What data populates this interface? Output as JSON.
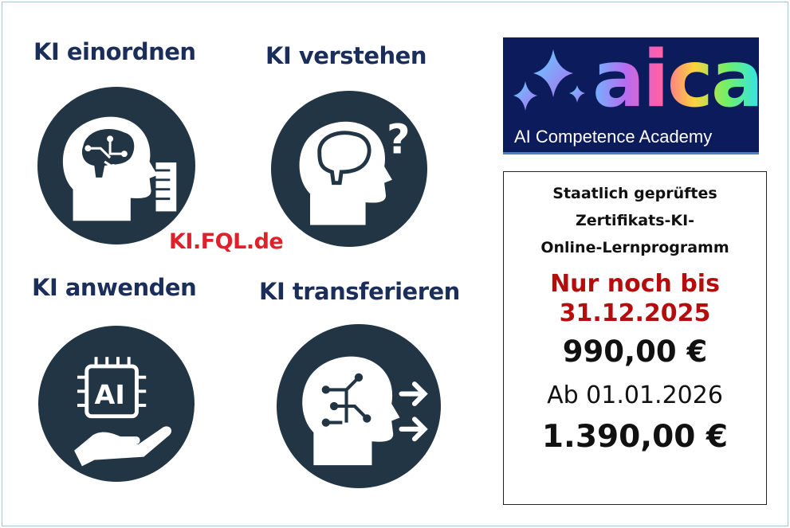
{
  "tiles": [
    {
      "title": "KI einordnen",
      "icon": "head-brain-circuit-document-icon"
    },
    {
      "title": "KI verstehen",
      "icon": "head-brain-question-icon"
    },
    {
      "title": "KI anwenden",
      "icon": "hand-ai-chip-icon"
    },
    {
      "title": "KI transferieren",
      "icon": "head-circuit-arrows-icon"
    }
  ],
  "website": "KI.FQL.de",
  "logo": {
    "wordmark": "aica",
    "subtitle": "AI Competence Academy"
  },
  "offer": {
    "line1": "Staatlich geprüftes",
    "line2": "Zertifikats-KI-",
    "line3": "Online-Lernprogramm",
    "deadline1": "Nur noch bis",
    "deadline2": "31.12.2025",
    "price_now": "990,00 €",
    "from_label": "Ab 01.01.2026",
    "price_later": "1.390,00 €"
  },
  "colors": {
    "circle": "#223544",
    "title": "#1b2e5a",
    "url": "#e0202a",
    "deadline": "#b50d0d",
    "logo_bg": "#0b1b5c"
  }
}
